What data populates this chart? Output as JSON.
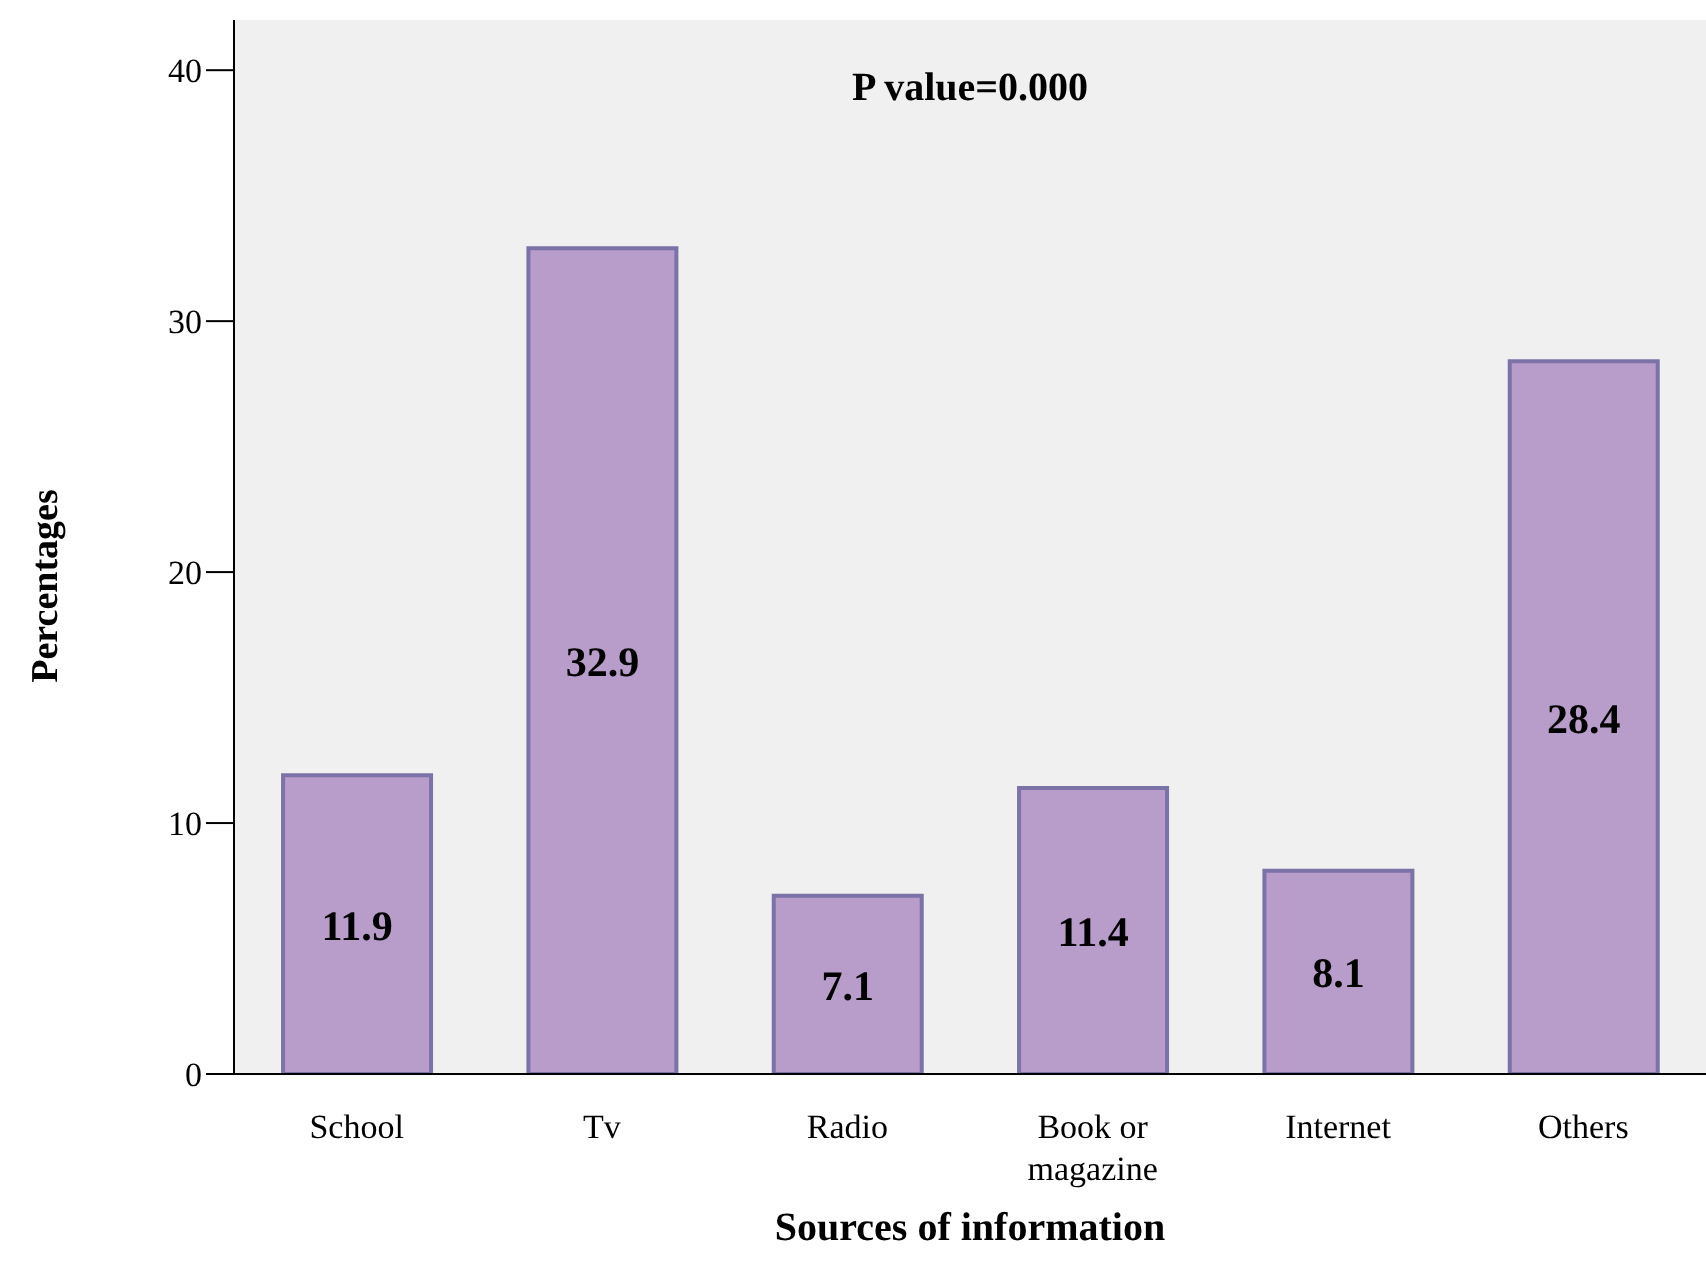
{
  "chart_data": {
    "type": "bar",
    "xlabel": "Sources of information",
    "ylabel": "Percentages",
    "annotations": [
      "P value=0.000"
    ],
    "categories": [
      "School",
      "Tv",
      "Radio",
      "Book or magazine",
      "Internet",
      "Others"
    ],
    "values": [
      11.9,
      32.9,
      7.1,
      11.4,
      8.1,
      28.4
    ],
    "color": "#b89cc9",
    "ylim": [
      0,
      42
    ],
    "yticks": [
      0,
      10,
      20,
      30,
      40
    ],
    "data_labels": true,
    "grid": false
  }
}
